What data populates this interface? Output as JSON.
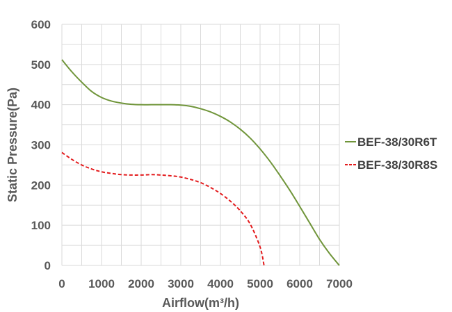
{
  "chart_data": {
    "type": "line",
    "xlabel": "Airflow(m³/h)",
    "ylabel": "Static Pressure(Pa)",
    "xlim": [
      0,
      7000
    ],
    "ylim": [
      0,
      600
    ],
    "xticks": [
      0,
      1000,
      2000,
      3000,
      4000,
      5000,
      6000,
      7000
    ],
    "yticks": [
      0,
      100,
      200,
      300,
      400,
      500,
      600
    ],
    "grid": true,
    "legend_position": "right",
    "series": [
      {
        "name": "BEF-38/30R6T",
        "color": "#70953a",
        "style": "solid",
        "x": [
          0,
          250,
          500,
          750,
          1000,
          1250,
          1500,
          1750,
          2000,
          2250,
          2500,
          2750,
          3000,
          3250,
          3500,
          3750,
          4000,
          4250,
          4500,
          4750,
          5000,
          5250,
          5500,
          5750,
          6000,
          6250,
          6500,
          6750,
          7000
        ],
        "y": [
          512,
          482,
          456,
          433,
          418,
          409,
          404,
          401,
          400,
          400,
          400,
          400,
          399,
          396,
          390,
          382,
          371,
          357,
          339,
          317,
          290,
          259,
          224,
          187,
          147,
          106,
          65,
          30,
          0
        ]
      },
      {
        "name": "BEF-38/30R8S",
        "color": "#e31a1c",
        "style": "dashed",
        "x": [
          0,
          250,
          500,
          750,
          1000,
          1250,
          1500,
          1750,
          2000,
          2250,
          2500,
          2750,
          3000,
          3250,
          3500,
          3750,
          4000,
          4250,
          4500,
          4750,
          5000,
          5100
        ],
        "y": [
          281,
          264,
          250,
          240,
          233,
          229,
          226,
          225,
          225,
          226,
          225,
          223,
          220,
          214,
          206,
          194,
          179,
          160,
          136,
          103,
          46,
          0
        ]
      }
    ]
  }
}
